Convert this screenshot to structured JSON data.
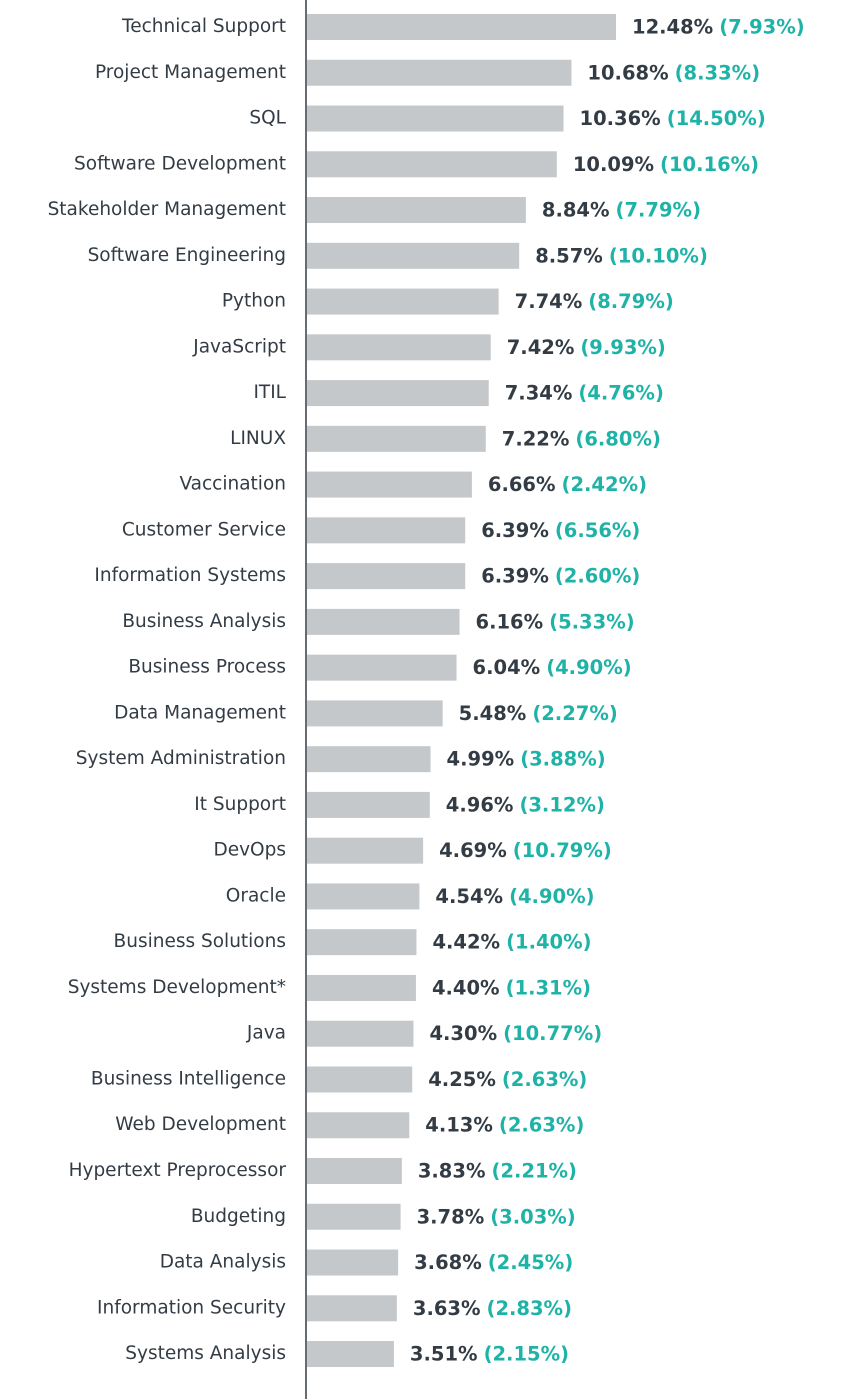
{
  "chart_data": {
    "type": "hbar",
    "categories": [
      "Technical Support",
      "Project Management",
      "SQL",
      "Software Development",
      "Stakeholder Management",
      "Software Engineering",
      "Python",
      "JavaScript",
      "ITIL",
      "LINUX",
      "Vaccination",
      "Customer Service",
      "Information Systems",
      "Business Analysis",
      "Business Process",
      "Data Management",
      "System Administration",
      "It Support",
      "DevOps",
      "Oracle",
      "Business Solutions",
      "Systems Development*",
      "Java",
      "Business Intelligence",
      "Web Development",
      "Hypertext Preprocessor",
      "Budgeting",
      "Data Analysis",
      "Information Security",
      "Systems Analysis"
    ],
    "values": [
      12.48,
      10.68,
      10.36,
      10.09,
      8.84,
      8.57,
      7.74,
      7.42,
      7.34,
      7.22,
      6.66,
      6.39,
      6.39,
      6.16,
      6.04,
      5.48,
      4.99,
      4.96,
      4.69,
      4.54,
      4.42,
      4.4,
      4.3,
      4.25,
      4.13,
      3.83,
      3.78,
      3.68,
      3.63,
      3.51
    ],
    "value_labels": [
      "12.48%",
      "10.68%",
      "10.36%",
      "10.09%",
      "8.84%",
      "8.57%",
      "7.74%",
      "7.42%",
      "7.34%",
      "7.22%",
      "6.66%",
      "6.39%",
      "6.39%",
      "6.16%",
      "6.04%",
      "5.48%",
      "4.99%",
      "4.96%",
      "4.69%",
      "4.54%",
      "4.42%",
      "4.40%",
      "4.30%",
      "4.25%",
      "4.13%",
      "3.83%",
      "3.78%",
      "3.68%",
      "3.63%",
      "3.51%"
    ],
    "secondary_labels": [
      "(7.93%)",
      "(8.33%)",
      "(14.50%)",
      "(10.16%)",
      "(7.79%)",
      "(10.10%)",
      "(8.79%)",
      "(9.93%)",
      "(4.76%)",
      "(6.80%)",
      "(2.42%)",
      "(6.56%)",
      "(2.60%)",
      "(5.33%)",
      "(4.90%)",
      "(2.27%)",
      "(3.88%)",
      "(3.12%)",
      "(10.79%)",
      "(4.90%)",
      "(1.40%)",
      "(1.31%)",
      "(10.77%)",
      "(2.63%)",
      "(2.63%)",
      "(2.21%)",
      "(3.03%)",
      "(2.45%)",
      "(2.83%)",
      "(2.15%)"
    ],
    "color": "#c5c8ca",
    "secondary_color": "#1fb3a8"
  }
}
